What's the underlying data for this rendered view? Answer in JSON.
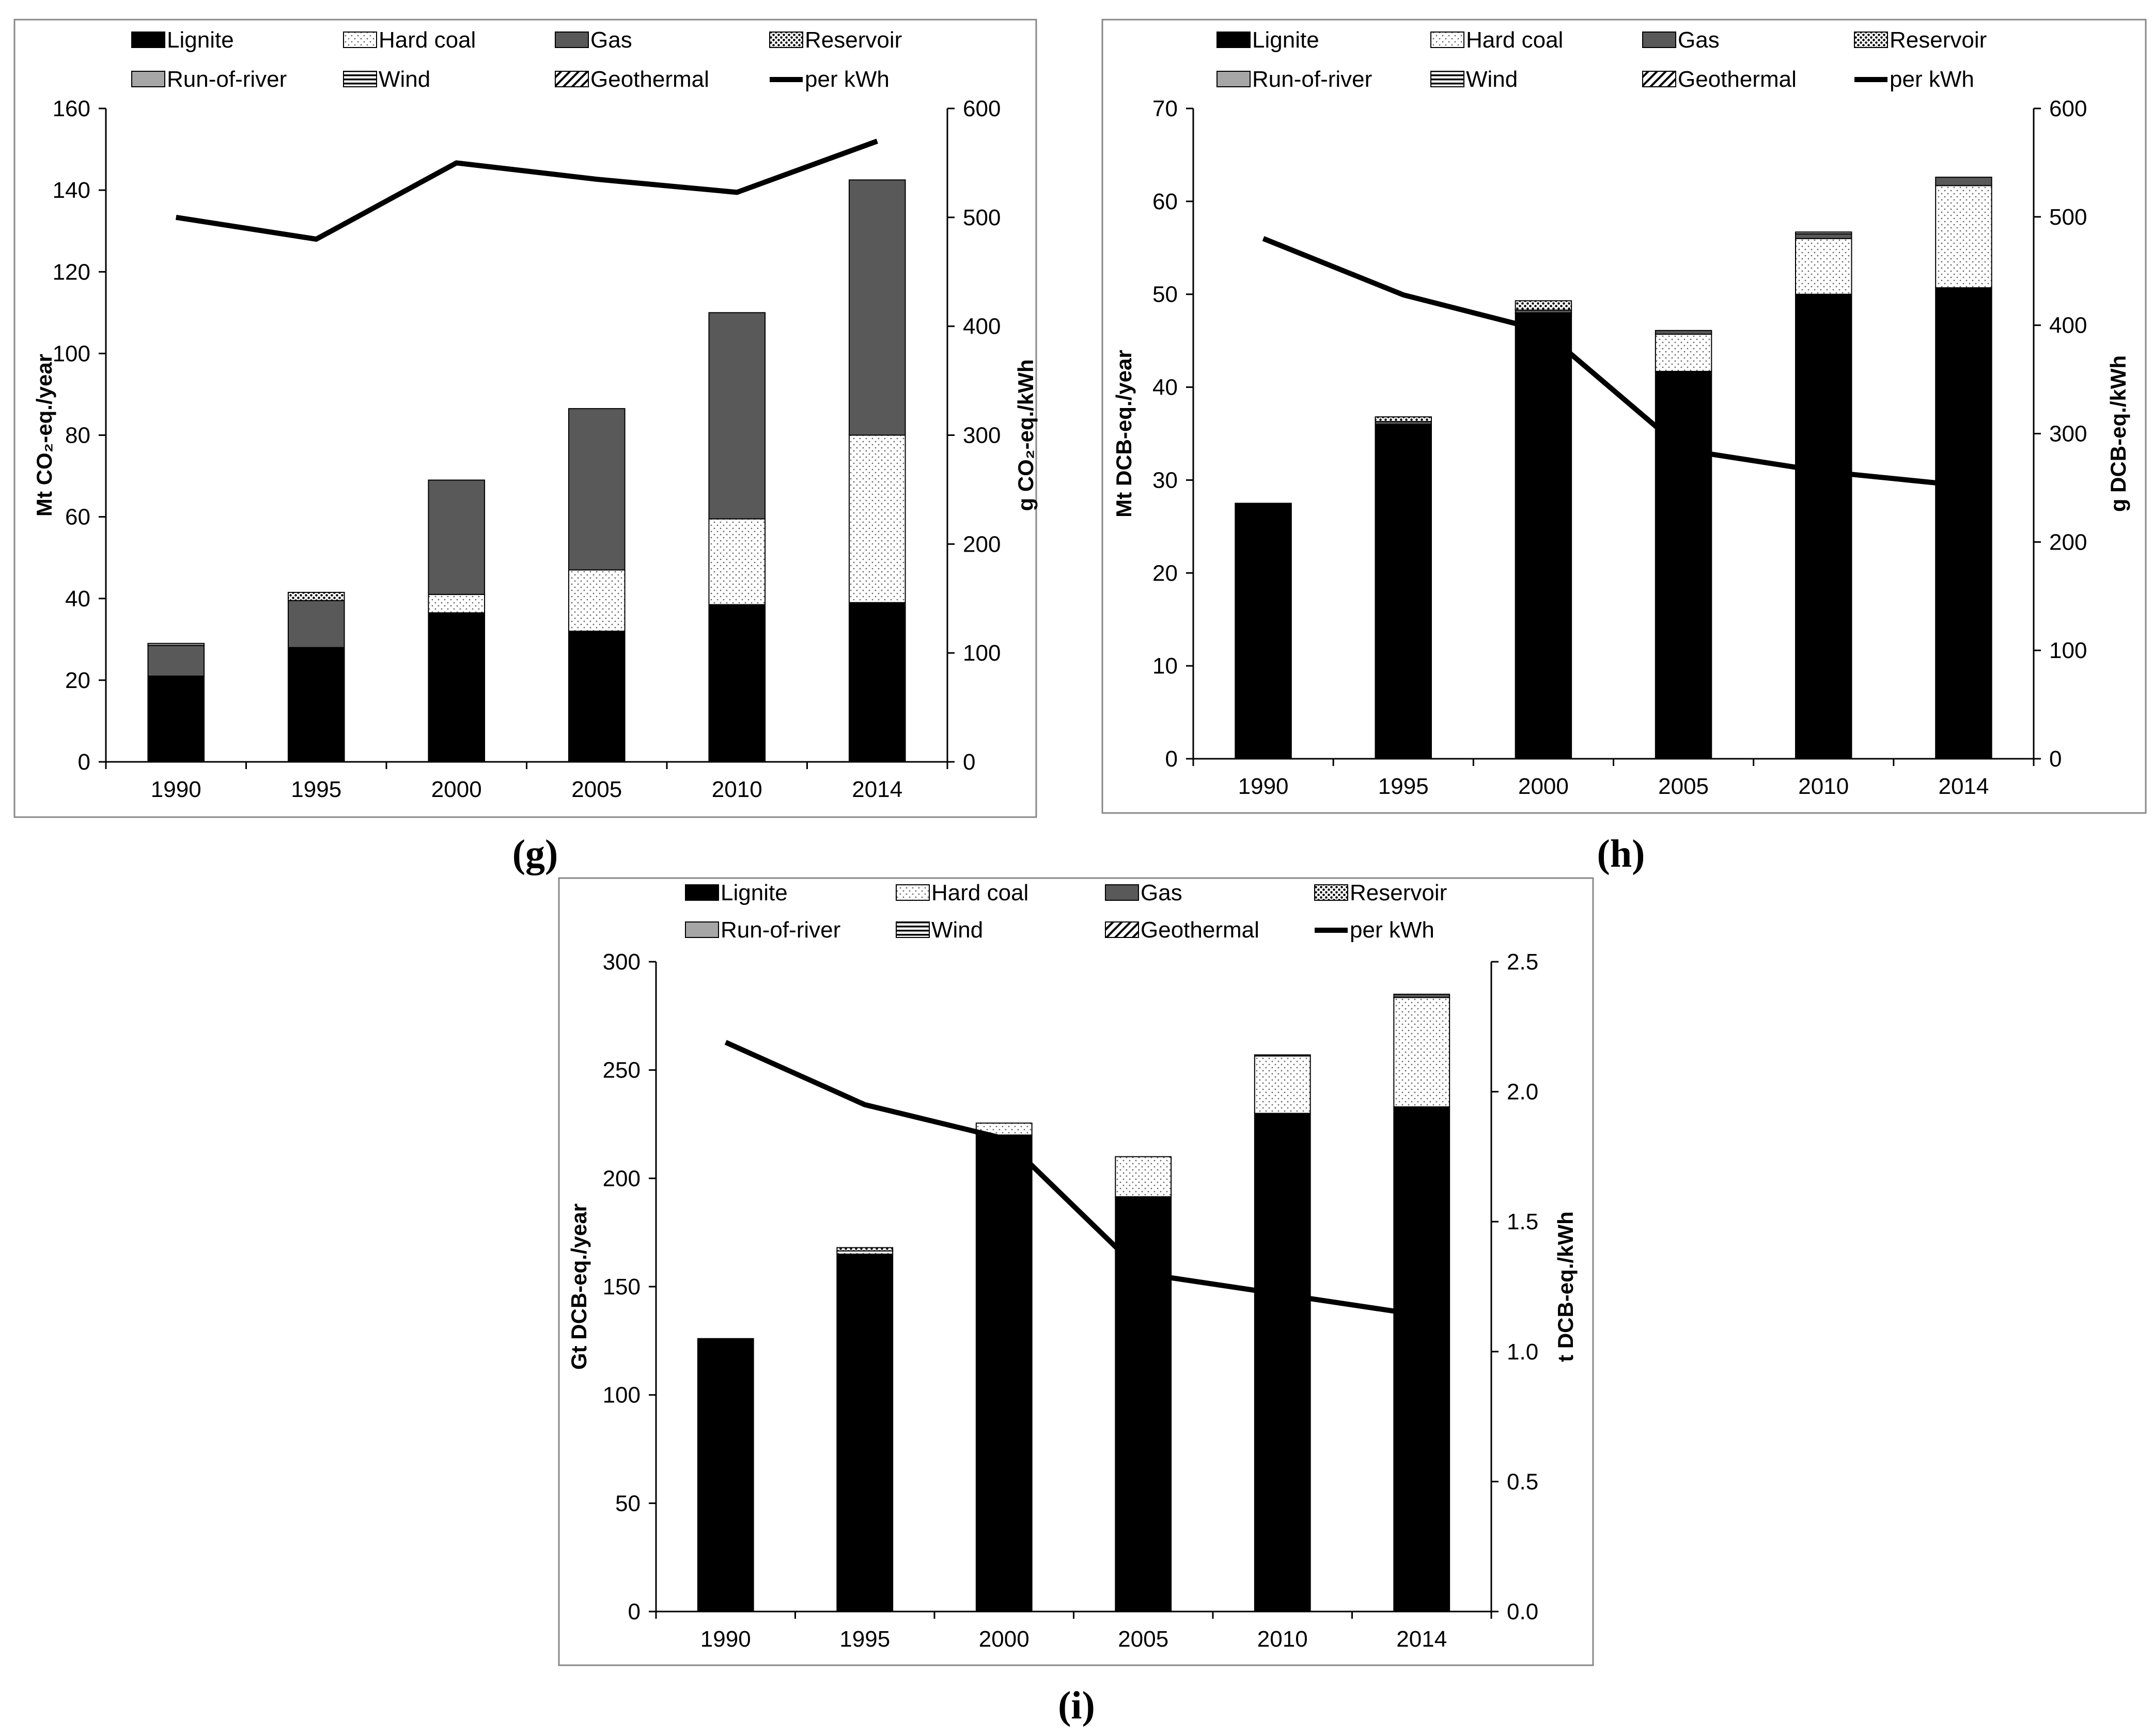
{
  "chart_data": [
    {
      "type": "bar",
      "panel_label": "(g)",
      "categories": [
        "1990",
        "1995",
        "2000",
        "2005",
        "2010",
        "2014"
      ],
      "series": [
        {
          "name": "Lignite",
          "values": [
            21,
            28,
            36.5,
            32,
            38.5,
            39
          ]
        },
        {
          "name": "Hard coal",
          "values": [
            0,
            0,
            4.5,
            15,
            21,
            41
          ]
        },
        {
          "name": "Gas",
          "values": [
            7.5,
            11.5,
            28,
            39.5,
            50.5,
            62.5
          ]
        },
        {
          "name": "Reservoir",
          "values": [
            0,
            2,
            0,
            0,
            0,
            0
          ]
        },
        {
          "name": "Run-of-river",
          "values": [
            0.5,
            0,
            0,
            0,
            0,
            0
          ]
        },
        {
          "name": "Wind",
          "values": [
            0,
            0,
            0,
            0,
            0,
            0
          ]
        },
        {
          "name": "Geothermal",
          "values": [
            0,
            0,
            0,
            0,
            0,
            0
          ]
        }
      ],
      "line_series": {
        "name": "per kWh",
        "values": [
          500,
          480,
          550,
          535,
          523,
          570
        ]
      },
      "ylabel": "Mt CO₂-eq./year",
      "y2label": "g CO₂-eq./kWh",
      "ylim": [
        0,
        160
      ],
      "y2lim": [
        0,
        600
      ],
      "yticks": [
        "0",
        "20",
        "40",
        "60",
        "80",
        "100",
        "120",
        "140",
        "160"
      ],
      "y2ticks": [
        "0",
        "100",
        "200",
        "300",
        "400",
        "500",
        "600"
      ]
    },
    {
      "type": "bar",
      "panel_label": "(h)",
      "categories": [
        "1990",
        "1995",
        "2000",
        "2005",
        "2010",
        "2014"
      ],
      "series": [
        {
          "name": "Lignite",
          "values": [
            27.5,
            36,
            48,
            41.7,
            50,
            50.7
          ]
        },
        {
          "name": "Hard coal",
          "values": [
            0,
            0,
            0,
            4,
            6,
            11
          ]
        },
        {
          "name": "Gas",
          "values": [
            0,
            0.3,
            0.3,
            0.4,
            0.5,
            0.9
          ]
        },
        {
          "name": "Reservoir",
          "values": [
            0,
            0.5,
            1.0,
            0,
            0,
            0
          ]
        },
        {
          "name": "Run-of-river",
          "values": [
            0,
            0,
            0,
            0,
            0.2,
            0
          ]
        },
        {
          "name": "Wind",
          "values": [
            0,
            0,
            0,
            0,
            0,
            0
          ]
        },
        {
          "name": "Geothermal",
          "values": [
            0,
            0,
            0,
            0,
            0,
            0
          ]
        }
      ],
      "line_series": {
        "name": "per kWh",
        "values": [
          480,
          428,
          395,
          285,
          265,
          252
        ]
      },
      "ylabel": "Mt DCB-eq./year",
      "y2label": "g DCB-eq./kWh",
      "ylim": [
        0,
        70
      ],
      "y2lim": [
        0,
        600
      ],
      "yticks": [
        "0",
        "10",
        "20",
        "30",
        "40",
        "50",
        "60",
        "70"
      ],
      "y2ticks": [
        "0",
        "100",
        "200",
        "300",
        "400",
        "500",
        "600"
      ]
    },
    {
      "type": "bar",
      "panel_label": "(i)",
      "categories": [
        "1990",
        "1995",
        "2000",
        "2005",
        "2010",
        "2014"
      ],
      "series": [
        {
          "name": "Lignite",
          "values": [
            126,
            165,
            220,
            191.5,
            230,
            233
          ]
        },
        {
          "name": "Hard coal",
          "values": [
            0,
            1.5,
            5.5,
            18.5,
            26.5,
            50.5
          ]
        },
        {
          "name": "Gas",
          "values": [
            0,
            0,
            0,
            0,
            0.5,
            1.5
          ]
        },
        {
          "name": "Reservoir",
          "values": [
            0,
            1.5,
            0,
            0,
            0,
            0
          ]
        },
        {
          "name": "Run-of-river",
          "values": [
            0,
            0,
            0,
            0,
            0,
            0
          ]
        },
        {
          "name": "Wind",
          "values": [
            0,
            0,
            0,
            0,
            0,
            0
          ]
        },
        {
          "name": "Geothermal",
          "values": [
            0,
            0,
            0,
            0,
            0,
            0
          ]
        }
      ],
      "line_series": {
        "name": "per kWh",
        "values": [
          2.19,
          1.95,
          1.82,
          1.3,
          1.22,
          1.14
        ]
      },
      "ylabel": "Gt DCB-eq./year",
      "y2label": "t DCB-eq./kWh",
      "ylim": [
        0,
        300
      ],
      "y2lim": [
        0,
        2.5
      ],
      "yticks": [
        "0",
        "50",
        "100",
        "150",
        "200",
        "250",
        "300"
      ],
      "y2ticks": [
        "0.0",
        "0.5",
        "1.0",
        "1.5",
        "2.0",
        "2.5"
      ]
    }
  ],
  "legend": {
    "labels": [
      "Lignite",
      "Hard coal",
      "Gas",
      "Reservoir",
      "Run-of-river",
      "Wind",
      "Geothermal",
      "per kWh"
    ]
  },
  "colors": {
    "lignite": "#000000",
    "hard_coal_bg": "#ffffff",
    "gas": "#595959",
    "run_of_river": "#a6a6a6",
    "line": "#000000",
    "frame": "#888888"
  }
}
